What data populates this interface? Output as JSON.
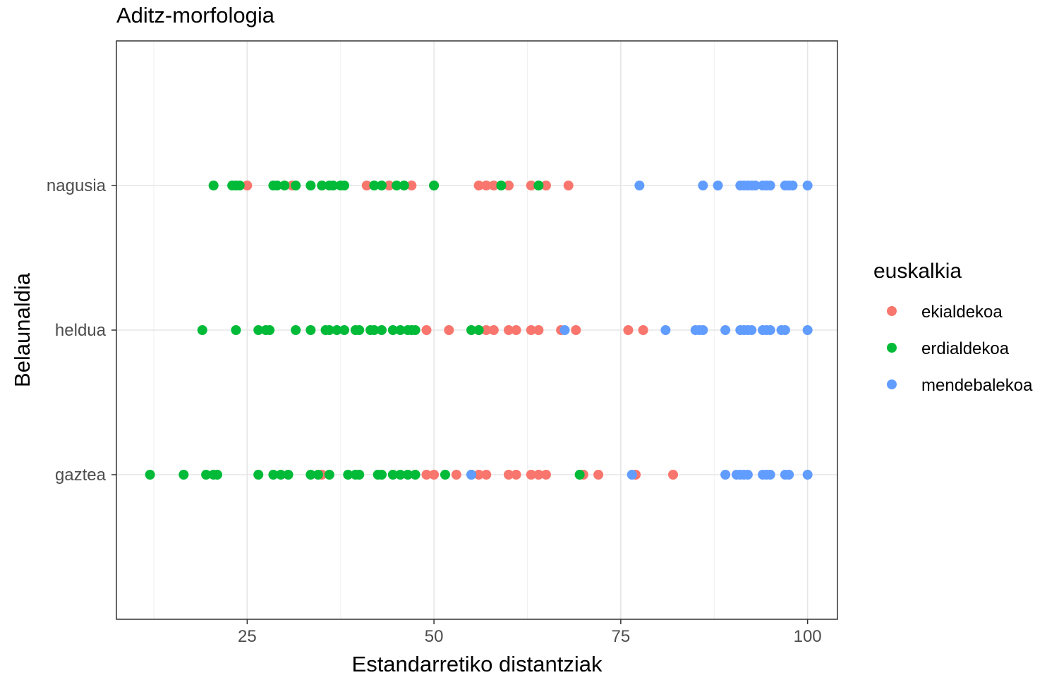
{
  "chart_data": {
    "type": "scatter",
    "title": "Aditz-morfologia",
    "xlabel": "Estandarretiko distantziak",
    "ylabel": "Belaunaldia",
    "xlim": [
      7.5,
      104
    ],
    "x_ticks": [
      25,
      50,
      75,
      100
    ],
    "x_tick_labels": [
      "25",
      "50",
      "75",
      "100"
    ],
    "categories": [
      "gaztea",
      "heldua",
      "nagusia"
    ],
    "grid": true,
    "legend": {
      "title": "euskalkia",
      "position": "right"
    },
    "series": [
      {
        "name": "ekialdekoa",
        "color": "#F8766D",
        "points": [
          {
            "y": "nagusia",
            "x": [
              25,
              31,
              35,
              41,
              44,
              47,
              50,
              56,
              57,
              58,
              60,
              63,
              65,
              68
            ]
          },
          {
            "y": "heldua",
            "x": [
              49,
              52,
              56,
              57,
              58,
              60,
              61,
              63,
              64,
              67,
              69,
              76,
              78
            ]
          },
          {
            "y": "gaztea",
            "x": [
              35,
              49,
              50,
              53,
              56,
              57,
              60,
              61,
              63,
              64,
              65,
              70,
              72,
              77,
              82
            ]
          }
        ]
      },
      {
        "name": "erdialdekoa",
        "color": "#00BA38",
        "points": [
          {
            "y": "nagusia",
            "x": [
              20.5,
              23,
              23.5,
              24,
              28.5,
              29,
              30,
              31.5,
              33.5,
              35,
              36,
              36.5,
              37.5,
              38,
              42,
              43,
              45,
              46,
              50,
              59,
              64
            ]
          },
          {
            "y": "heldua",
            "x": [
              19,
              23.5,
              26.5,
              27.5,
              28,
              31.5,
              33.5,
              35.5,
              36,
              37,
              38,
              39.5,
              40,
              41.5,
              42,
              43,
              44.5,
              45.5,
              46.5,
              47,
              47.5,
              55,
              56
            ]
          },
          {
            "y": "gaztea",
            "x": [
              12,
              16.5,
              19.5,
              20.5,
              21,
              26.5,
              28.5,
              29.5,
              30.5,
              33.5,
              34.5,
              36,
              38.5,
              39.5,
              40,
              42.5,
              43,
              44.5,
              45.5,
              46.5,
              47.5,
              51.5,
              55,
              69.5
            ]
          }
        ]
      },
      {
        "name": "mendebalekoa",
        "color": "#619CFF",
        "points": [
          {
            "y": "nagusia",
            "x": [
              77.5,
              86,
              88,
              91,
              91.5,
              92,
              92.5,
              93,
              94,
              94.5,
              95,
              97,
              97.5,
              98,
              100
            ]
          },
          {
            "y": "heldua",
            "x": [
              67.5,
              81,
              85,
              85.5,
              86,
              89,
              91,
              91.5,
              92,
              92.5,
              94,
              94.5,
              95,
              96.5,
              97,
              100
            ]
          },
          {
            "y": "gaztea",
            "x": [
              55,
              76.5,
              89,
              90.5,
              91,
              91.5,
              92,
              94,
              94.5,
              95,
              97,
              97.5,
              100
            ]
          }
        ]
      }
    ]
  }
}
